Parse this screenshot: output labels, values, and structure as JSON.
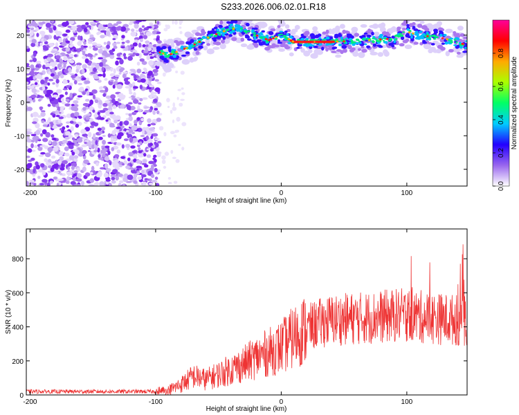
{
  "title": "S233.2026.006.02.01.R18",
  "chart_data": [
    {
      "type": "heatmap",
      "xlabel": "Height of straight line (km)",
      "ylabel": "Frequency (Hz)",
      "xlim": [
        -203,
        148
      ],
      "ylim": [
        -25,
        24.5
      ],
      "xticks": [
        "-200",
        "-100",
        "0",
        "100"
      ],
      "xtick_values": [
        -200,
        -100,
        0,
        100
      ],
      "yticks": [
        "-20",
        "-10",
        "0",
        "10",
        "20"
      ],
      "ytick_values": [
        -20,
        -10,
        0,
        10,
        20
      ],
      "noise_region_x": [
        -203,
        -97
      ],
      "ridge": [
        {
          "x": -98,
          "f": 15
        },
        {
          "x": -90,
          "f": 14
        },
        {
          "x": -80,
          "f": 15.5
        },
        {
          "x": -70,
          "f": 17
        },
        {
          "x": -60,
          "f": 19
        },
        {
          "x": -50,
          "f": 20.5
        },
        {
          "x": -40,
          "f": 22
        },
        {
          "x": -30,
          "f": 21.5
        },
        {
          "x": -20,
          "f": 20
        },
        {
          "x": -10,
          "f": 18.5
        },
        {
          "x": 0,
          "f": 20
        },
        {
          "x": 10,
          "f": 18
        },
        {
          "x": 40,
          "f": 18
        },
        {
          "x": 70,
          "f": 18.5
        },
        {
          "x": 90,
          "f": 19
        },
        {
          "x": 100,
          "f": 21
        },
        {
          "x": 110,
          "f": 20
        },
        {
          "x": 130,
          "f": 19
        },
        {
          "x": 148,
          "f": 17
        }
      ],
      "colorbar": {
        "label": "Normalized spectral amplitude",
        "ticks": [
          "0.0",
          "0.2",
          "0.4",
          "0.6",
          "0.8"
        ],
        "tick_values": [
          0.0,
          0.2,
          0.4,
          0.6,
          0.8
        ],
        "range": [
          0,
          1
        ],
        "colors": [
          "#ffffff",
          "#9966ee",
          "#2200ff",
          "#00ccff",
          "#00ff66",
          "#aaff00",
          "#ffaa00",
          "#ff0000",
          "#ff0099"
        ]
      }
    },
    {
      "type": "line",
      "xlabel": "Height of straight line (km)",
      "ylabel": "SNR (10 * v/v)",
      "xlim": [
        -203,
        148
      ],
      "ylim": [
        0,
        975
      ],
      "xticks": [
        "-200",
        "-100",
        "0",
        "100"
      ],
      "xtick_values": [
        -200,
        -100,
        0,
        100
      ],
      "yticks": [
        "0",
        "200",
        "400",
        "600",
        "800"
      ],
      "ytick_values": [
        0,
        200,
        400,
        600,
        800
      ],
      "color": "#ee3333",
      "series": [
        {
          "name": "SNR",
          "x": [
            -203,
            -100,
            -90,
            -80,
            -70,
            -60,
            -50,
            -40,
            -30,
            -20,
            -10,
            0,
            10,
            20,
            30,
            40,
            60,
            80,
            100,
            120,
            140,
            148
          ],
          "values": [
            20,
            20,
            25,
            60,
            110,
            90,
            120,
            150,
            180,
            220,
            250,
            280,
            340,
            390,
            420,
            440,
            450,
            460,
            470,
            450,
            440,
            430
          ]
        }
      ]
    }
  ]
}
